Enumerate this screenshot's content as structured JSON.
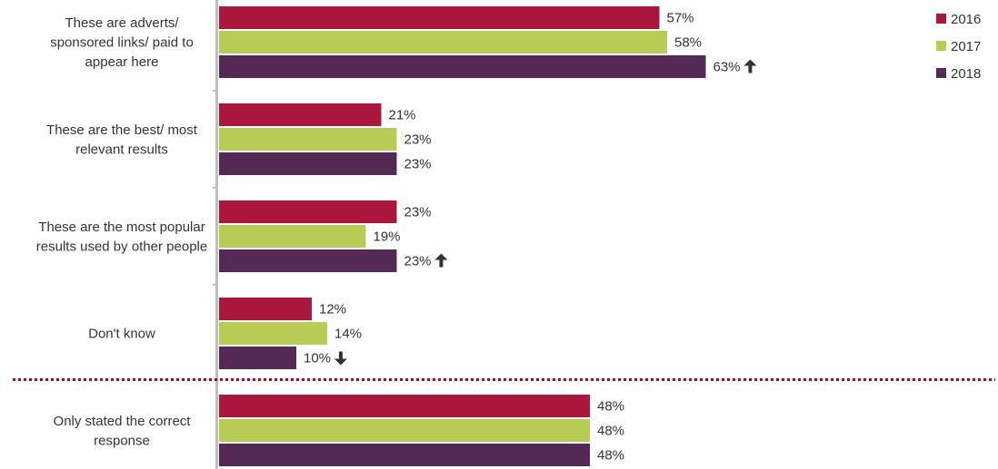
{
  "chart_data": {
    "type": "bar",
    "orientation": "horizontal",
    "title": "",
    "xlabel": "",
    "ylabel": "",
    "xlim": [
      0,
      100
    ],
    "grid": false,
    "legend": "top-right",
    "categories": [
      "These are adverts/ sponsored links/ paid to appear here",
      "These are the best/ most relevant results",
      "These are the most popular results used by other people",
      "Don't know",
      "Only stated the correct response"
    ],
    "category_lines": [
      [
        "These are adverts/",
        "sponsored links/ paid to",
        "appear here"
      ],
      [
        "These are the best/ most",
        "relevant results"
      ],
      [
        "These are the most popular",
        "results used by other people"
      ],
      [
        "Don't know"
      ],
      [
        "Only stated the correct",
        "response"
      ]
    ],
    "series": [
      {
        "name": "2016",
        "color": "#ab163c",
        "values": [
          57,
          21,
          23,
          12,
          48
        ],
        "labels": [
          "57%",
          "21%",
          "23%",
          "12%",
          "48%"
        ]
      },
      {
        "name": "2017",
        "color": "#b8cb55",
        "values": [
          58,
          23,
          19,
          14,
          48
        ],
        "labels": [
          "58%",
          "23%",
          "19%",
          "14%",
          "48%"
        ]
      },
      {
        "name": "2018",
        "color": "#542a55",
        "values": [
          63,
          23,
          23,
          10,
          48
        ],
        "labels": [
          "63%",
          "23%",
          "23%",
          "10%",
          "48%"
        ]
      }
    ],
    "annotations": [
      {
        "category": 0,
        "series": 2,
        "type": "significant-increase",
        "icon": "arrow-up-icon"
      },
      {
        "category": 2,
        "series": 2,
        "type": "significant-increase",
        "icon": "arrow-up-icon"
      },
      {
        "category": 3,
        "series": 2,
        "type": "significant-decrease",
        "icon": "arrow-down-icon"
      }
    ],
    "separator": {
      "after_category": 3,
      "style": "dotted",
      "color": "#c0001a"
    },
    "axis_color": "#bfbfbf",
    "label_color_2018": "#542a55"
  }
}
